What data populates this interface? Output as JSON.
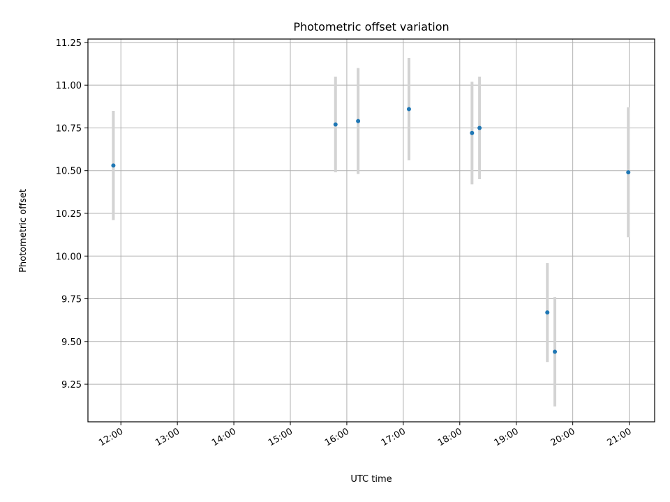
{
  "chart_data": {
    "type": "scatter",
    "title": "Photometric offset variation",
    "xlabel": "UTC time",
    "ylabel": "Photometric offset",
    "x_scale": "time",
    "xlim": [
      "11:25",
      "21:27"
    ],
    "ylim": [
      9.03,
      11.27
    ],
    "x_ticks": [
      "12:00",
      "13:00",
      "14:00",
      "15:00",
      "16:00",
      "17:00",
      "18:00",
      "19:00",
      "20:00",
      "21:00"
    ],
    "y_ticks": [
      "9.25",
      "9.50",
      "9.75",
      "10.00",
      "10.25",
      "10.50",
      "10.75",
      "11.00",
      "11.25"
    ],
    "grid": true,
    "legend": "none",
    "colors": {
      "point": "#1f77b4",
      "errorbar": "#d3d3d3",
      "grid": "#b0b0b0"
    },
    "points": [
      {
        "x": "11:52",
        "y": 10.53,
        "yerr": 0.32
      },
      {
        "x": "15:48",
        "y": 10.77,
        "yerr": 0.28
      },
      {
        "x": "16:12",
        "y": 10.79,
        "yerr": 0.31
      },
      {
        "x": "17:06",
        "y": 10.86,
        "yerr": 0.3
      },
      {
        "x": "18:13",
        "y": 10.72,
        "yerr": 0.3
      },
      {
        "x": "18:21",
        "y": 10.75,
        "yerr": 0.3
      },
      {
        "x": "19:33",
        "y": 9.67,
        "yerr": 0.29
      },
      {
        "x": "19:41",
        "y": 9.44,
        "yerr": 0.32
      },
      {
        "x": "20:59",
        "y": 10.49,
        "yerr": 0.38
      }
    ]
  }
}
